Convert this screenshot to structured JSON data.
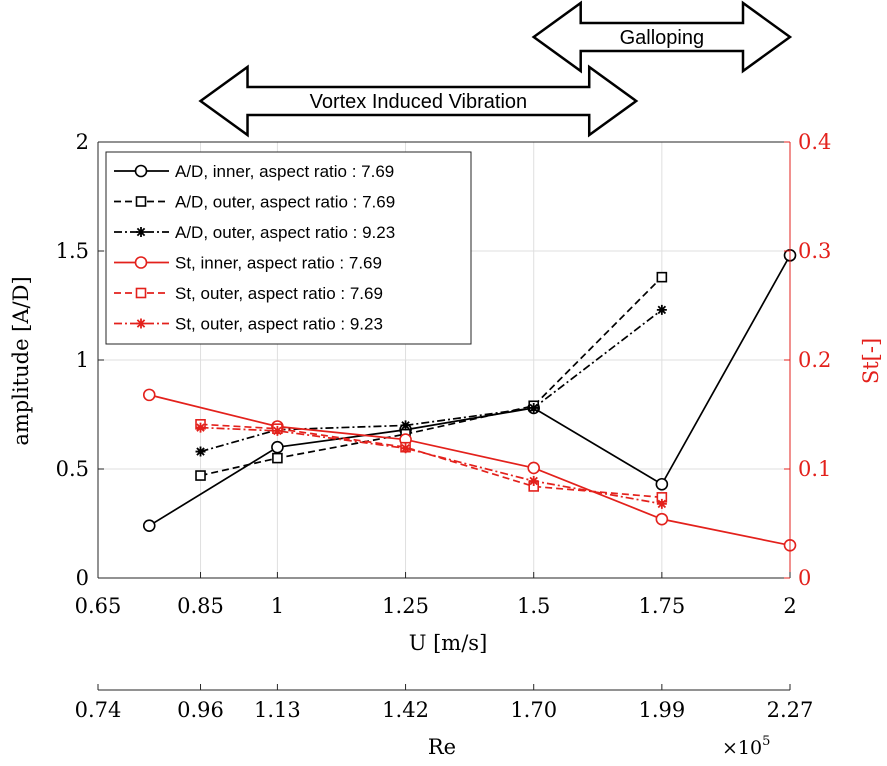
{
  "chart_data": {
    "type": "line",
    "xlabel": "U [m/s]",
    "ylabel_left": "amplitude  [A/D]",
    "ylabel_right": "St[-]",
    "secondary_xlabel": "Re",
    "secondary_x_exponent": "×10",
    "secondary_x_exponent_power": "5",
    "xlim": [
      0.65,
      2.0
    ],
    "ylim_left": [
      0,
      2
    ],
    "ylim_right": [
      0,
      0.4
    ],
    "x_ticks": [
      {
        "value": 0.65,
        "label": "0.65"
      },
      {
        "value": 0.85,
        "label": "0.85"
      },
      {
        "value": 1.0,
        "label": "1"
      },
      {
        "value": 1.25,
        "label": "1.25"
      },
      {
        "value": 1.5,
        "label": "1.5"
      },
      {
        "value": 1.75,
        "label": "1.75"
      },
      {
        "value": 2.0,
        "label": "2"
      }
    ],
    "y_ticks_left": [
      {
        "value": 0,
        "label": "0"
      },
      {
        "value": 0.5,
        "label": "0.5"
      },
      {
        "value": 1,
        "label": "1"
      },
      {
        "value": 1.5,
        "label": "1.5"
      },
      {
        "value": 2,
        "label": "2"
      }
    ],
    "y_ticks_right": [
      {
        "value": 0,
        "label": "0"
      },
      {
        "value": 0.1,
        "label": "0.1"
      },
      {
        "value": 0.2,
        "label": "0.2"
      },
      {
        "value": 0.3,
        "label": "0.3"
      },
      {
        "value": 0.4,
        "label": "0.4"
      }
    ],
    "secondary_x_ticks": [
      {
        "u": 0.65,
        "label": "0.74"
      },
      {
        "u": 0.85,
        "label": "0.96"
      },
      {
        "u": 1.0,
        "label": "1.13"
      },
      {
        "u": 1.25,
        "label": "1.42"
      },
      {
        "u": 1.5,
        "label": "1.70"
      },
      {
        "u": 1.75,
        "label": "1.99"
      },
      {
        "u": 2.0,
        "label": "2.27"
      }
    ],
    "regimes": [
      {
        "label": "Vortex Induced Vibration",
        "x_start": 0.85,
        "x_end": 1.7
      },
      {
        "label": "Galloping",
        "x_start": 1.5,
        "x_end": 2.0
      }
    ],
    "legend_position": "top-left",
    "grid": true,
    "series": [
      {
        "name": "A/D, inner, aspect ratio : 7.69",
        "axis": "left",
        "color": "#000000",
        "dash": "solid",
        "marker": "circle",
        "x": [
          0.75,
          1.0,
          1.25,
          1.5,
          1.75,
          2.0
        ],
        "y": [
          0.24,
          0.6,
          0.68,
          0.78,
          0.43,
          1.48
        ]
      },
      {
        "name": "A/D, outer, aspect ratio : 7.69",
        "axis": "left",
        "color": "#000000",
        "dash": "dashed",
        "marker": "square",
        "x": [
          0.85,
          1.0,
          1.25,
          1.5,
          1.75
        ],
        "y": [
          0.47,
          0.55,
          0.66,
          0.79,
          1.38
        ]
      },
      {
        "name": "A/D, outer, aspect ratio : 9.23",
        "axis": "left",
        "color": "#000000",
        "dash": "dashdot",
        "marker": "asterisk",
        "x": [
          0.85,
          1.0,
          1.25,
          1.5,
          1.75
        ],
        "y": [
          0.58,
          0.68,
          0.7,
          0.78,
          1.23
        ]
      },
      {
        "name": "St, inner, aspect ratio : 7.69",
        "axis": "right",
        "color": "#e3211c",
        "dash": "solid",
        "marker": "circle",
        "x": [
          0.75,
          1.0,
          1.25,
          1.5,
          1.75,
          2.0
        ],
        "y": [
          0.168,
          0.139,
          0.127,
          0.101,
          0.054,
          0.03
        ]
      },
      {
        "name": "St, outer, aspect ratio : 7.69",
        "axis": "right",
        "color": "#e3211c",
        "dash": "dashed",
        "marker": "square",
        "x": [
          0.85,
          1.0,
          1.25,
          1.5,
          1.75
        ],
        "y": [
          0.141,
          0.137,
          0.12,
          0.084,
          0.074
        ]
      },
      {
        "name": "St, outer, aspect ratio : 9.23",
        "axis": "right",
        "color": "#e3211c",
        "dash": "dashdot",
        "marker": "asterisk",
        "x": [
          0.85,
          1.0,
          1.25,
          1.5,
          1.75
        ],
        "y": [
          0.138,
          0.135,
          0.119,
          0.089,
          0.068
        ]
      }
    ]
  }
}
